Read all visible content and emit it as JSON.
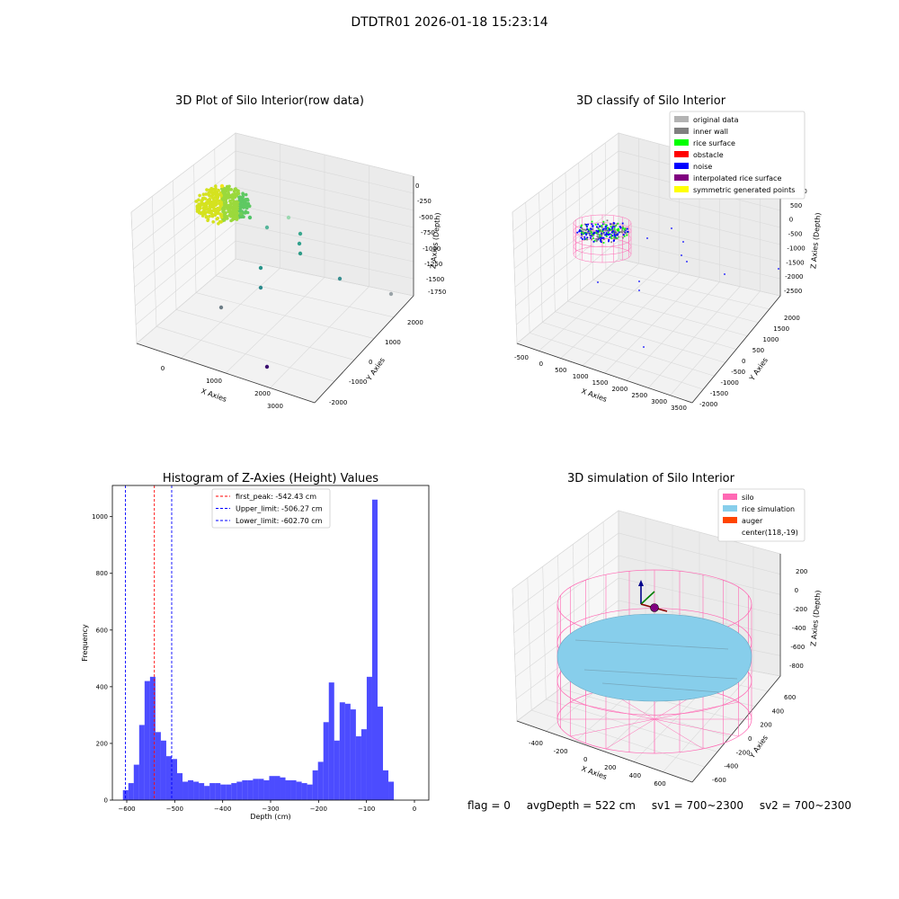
{
  "suptitle": "DTDTR01 2026-01-18 15:23:14",
  "status": {
    "flag": "flag = 0",
    "avg_depth": "avgDepth = 522 cm",
    "sv1": "sv1 = 700~2300",
    "sv2": "sv2 = 700~2300"
  },
  "colors": {
    "histogram_bar": "#0000ff",
    "first_peak_line": "#ff0000",
    "limit_line": "#0000ff",
    "original_data": "#b3b3b3",
    "inner_wall": "#808080",
    "rice_surface": "#00ff00",
    "obstacle": "#ff0000",
    "noise": "#0000ff",
    "interpolated_rice_surface": "#800080",
    "symmetric_generated_points": "#ffff00",
    "silo": "#ff69b4",
    "rice_simulation": "#87ceeb",
    "auger": "#ff4500"
  },
  "chart_data": [
    {
      "type": "scatter",
      "title": "3D Plot of Silo Interior(row data)",
      "xlabel": "X Axies",
      "ylabel": "Y Axies",
      "zlabel": "Z Axies (Depth)",
      "x_ticks": [
        "0",
        "1000",
        "2000",
        "3000"
      ],
      "y_ticks": [
        "-2000",
        "-1000",
        "0",
        "1000",
        "2000"
      ],
      "z_ticks": [
        "0",
        "-250",
        "-500",
        "-750",
        "-1000",
        "-1250",
        "-1500",
        "-1750"
      ]
    },
    {
      "type": "scatter",
      "title": "3D classify of Silo Interior",
      "xlabel": "X Axies",
      "ylabel": "Y Axies",
      "zlabel": "Z Axies (Depth)",
      "x_ticks": [
        "-500",
        "0",
        "500",
        "1000",
        "1500",
        "2000",
        "2500",
        "3000",
        "3500"
      ],
      "y_ticks": [
        "-2000",
        "-1500",
        "-1000",
        "-500",
        "0",
        "500",
        "1000",
        "1500",
        "2000"
      ],
      "z_ticks": [
        "1000",
        "500",
        "0",
        "-500",
        "-1000",
        "-1500",
        "-2000",
        "-2500"
      ],
      "legend": [
        "original data",
        "inner wall",
        "rice surface",
        "obstacle",
        "noise",
        "interpolated rice surface",
        "symmetric generated points"
      ],
      "legend_position": "top-right"
    },
    {
      "type": "bar",
      "title": "Histogram of Z-Axies (Height) Values",
      "xlabel": "Depth (cm)",
      "ylabel": "Frequency",
      "xlim": [
        -630,
        30
      ],
      "ylim": [
        0,
        1110
      ],
      "x_ticks": [
        -600,
        -500,
        -400,
        -300,
        -200,
        -100,
        0
      ],
      "y_ticks": [
        0,
        200,
        400,
        600,
        800,
        1000
      ],
      "bin_width": 11.3,
      "bin_start": -608,
      "values": [
        35,
        60,
        125,
        265,
        420,
        435,
        240,
        210,
        155,
        145,
        95,
        65,
        70,
        65,
        60,
        50,
        60,
        60,
        55,
        55,
        60,
        65,
        70,
        70,
        75,
        75,
        70,
        85,
        85,
        80,
        70,
        70,
        65,
        60,
        55,
        105,
        135,
        275,
        415,
        210,
        345,
        340,
        320,
        225,
        250,
        435,
        1060,
        330,
        105,
        65
      ],
      "vlines": [
        {
          "x": -542.43,
          "label": "first_peak: -542.43 cm"
        },
        {
          "x": -506.27,
          "label": "Upper_limit: -506.27 cm"
        },
        {
          "x": -602.7,
          "label": "Lower_limit: -602.70 cm"
        }
      ],
      "legend_position": "top-center"
    },
    {
      "type": "scatter",
      "title": "3D simulation of Silo Interior",
      "xlabel": "X Axies",
      "ylabel": "Y Axies",
      "zlabel": "Z Axies (Depth)",
      "x_ticks": [
        "-400",
        "-200",
        "0",
        "200",
        "400",
        "600"
      ],
      "y_ticks": [
        "-600",
        "-400",
        "-200",
        "0",
        "200",
        "400",
        "600"
      ],
      "z_ticks": [
        "200",
        "0",
        "-200",
        "-400",
        "-600",
        "-800"
      ],
      "legend": [
        "silo",
        "rice simulation",
        "auger",
        "center(118,-19)"
      ],
      "legend_position": "top-right"
    }
  ]
}
